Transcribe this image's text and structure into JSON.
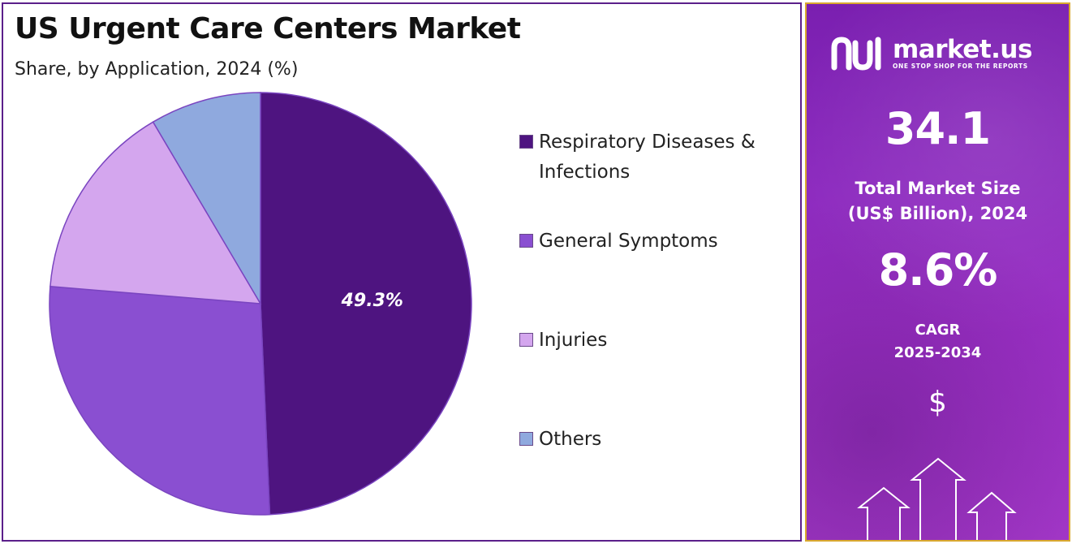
{
  "chart_data": {
    "type": "pie",
    "title": "US Urgent Care Centers Market",
    "subtitle": "Share, by Application, 2024 (%)",
    "categories": [
      "Respiratory Diseases & Infections",
      "General Symptoms",
      "Injuries",
      "Others"
    ],
    "values": [
      49.3,
      27.0,
      15.2,
      8.5
    ],
    "data_labels": [
      "49.3%"
    ],
    "colors": [
      "#4e1480",
      "#8a4fd1",
      "#d4a6ee",
      "#8fa9de"
    ],
    "legend_position": "right"
  },
  "info_panel": {
    "brand_name": "market.us",
    "brand_tagline": "ONE STOP SHOP FOR THE REPORTS",
    "market_size_value": "34.1",
    "market_size_label_line1": "Total Market Size",
    "market_size_label_line2": "(US$ Billion), 2024",
    "cagr_value": "8.6%",
    "cagr_label_line1": "CAGR",
    "cagr_label_line2": "2025-2034",
    "currency_symbol": "$"
  }
}
